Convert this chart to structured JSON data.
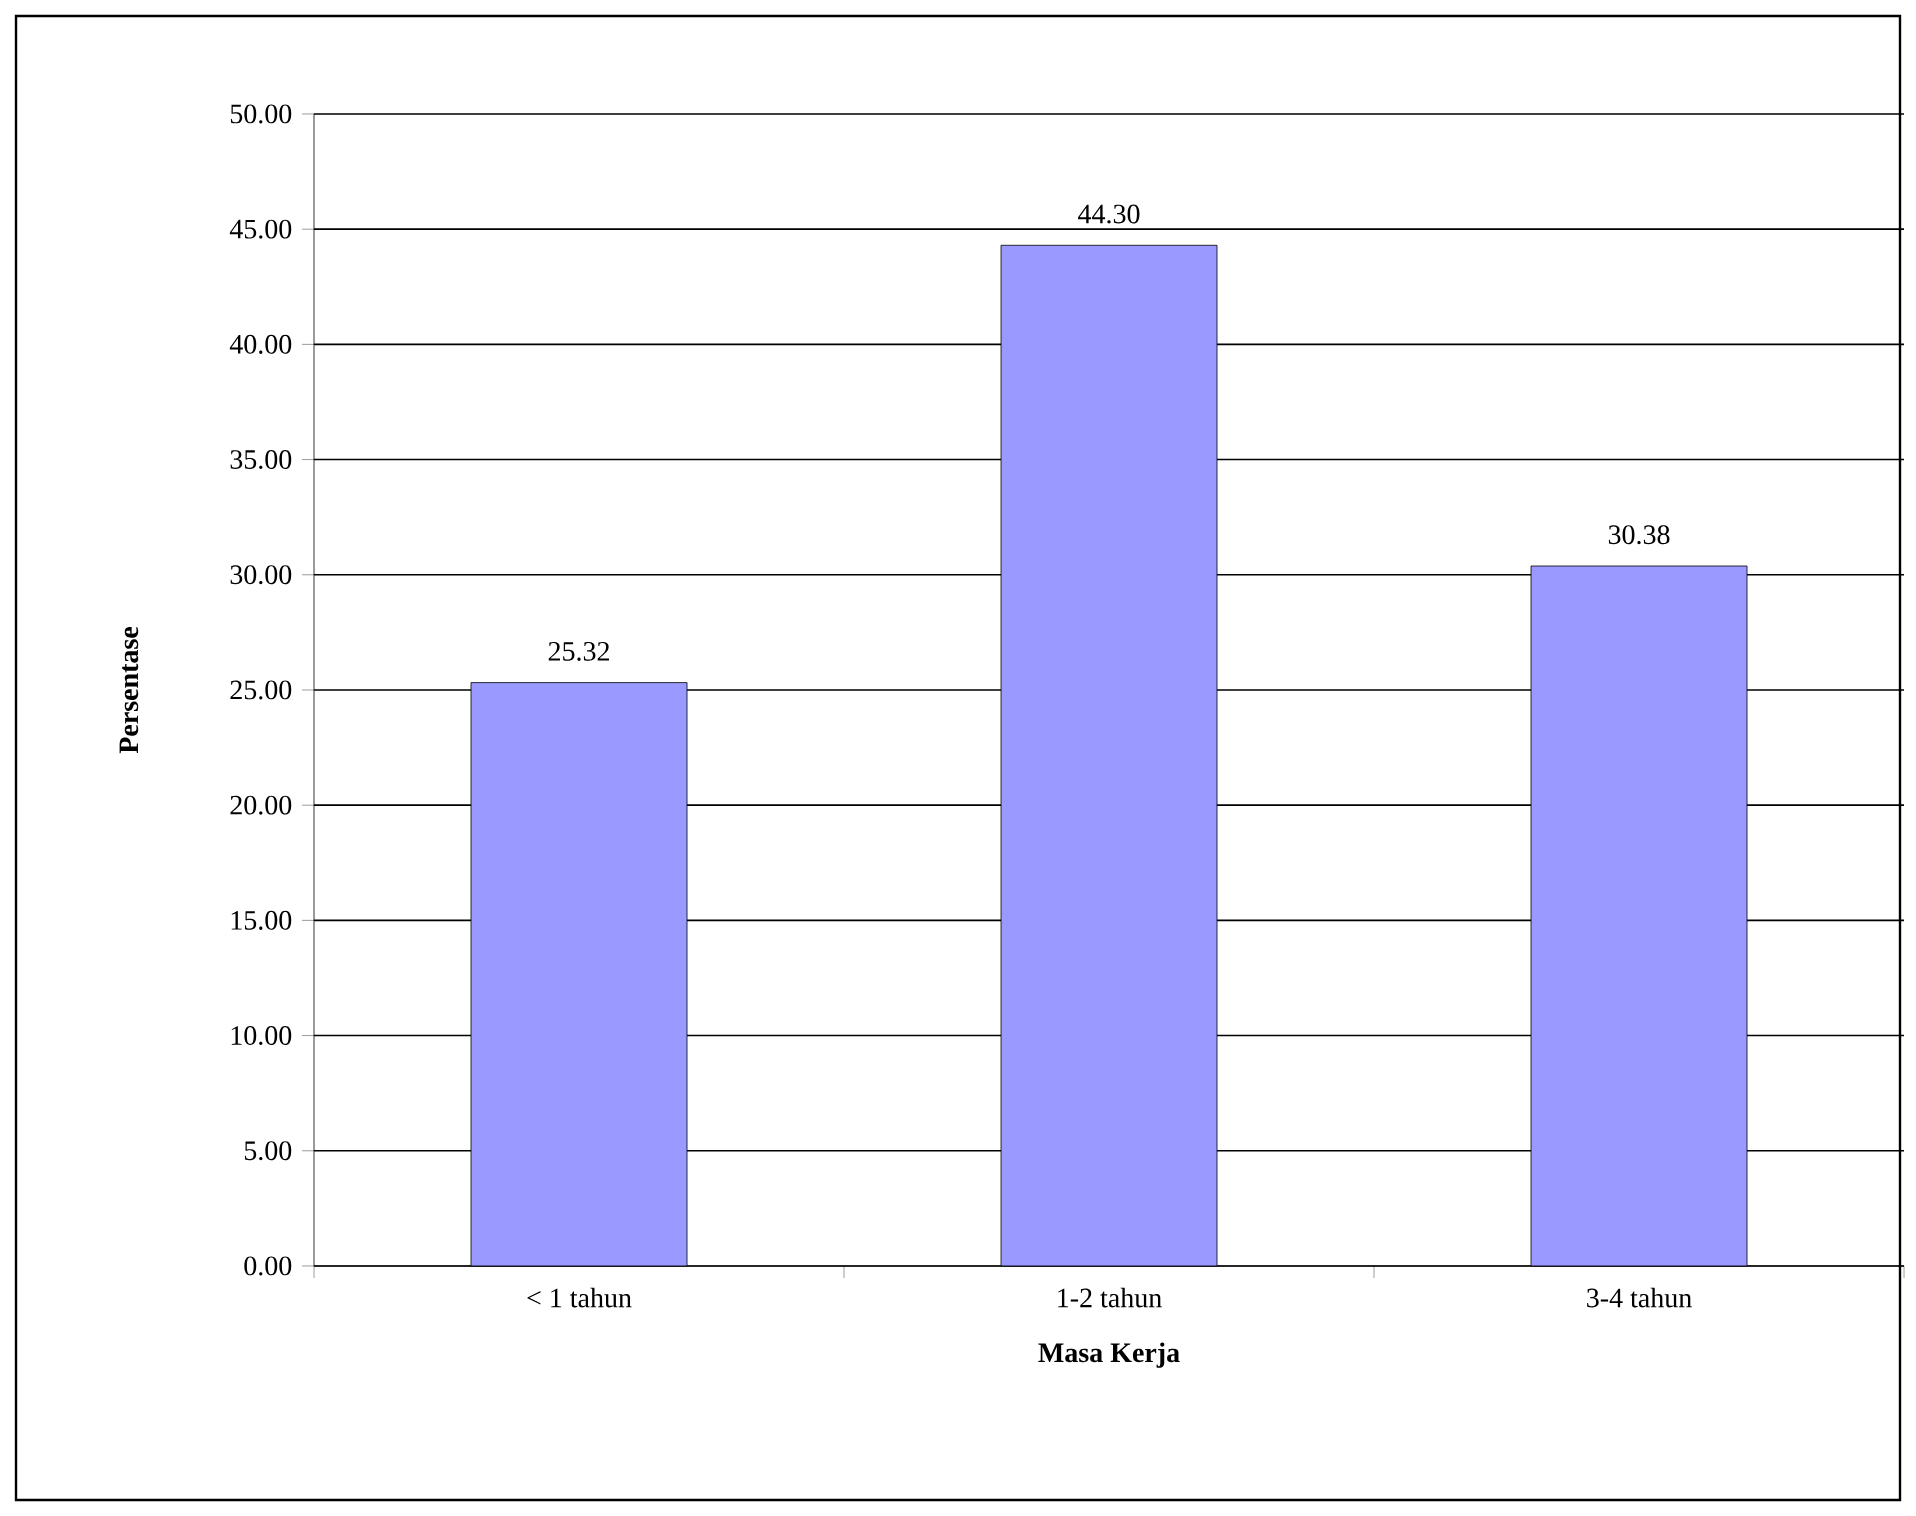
{
  "chart_data": {
    "type": "bar",
    "xlabel": "Masa Kerja",
    "ylabel": "Persentase",
    "categories": [
      "< 1 tahun",
      "1-2 tahun",
      "3-4 tahun"
    ],
    "values": [
      25.32,
      44.3,
      30.38
    ],
    "value_labels": [
      "25.32",
      "44.30",
      "30.38"
    ],
    "color": "#9999ff",
    "ylim": [
      0,
      50
    ],
    "yticks": [
      {
        "value": 0,
        "label": "0.00"
      },
      {
        "value": 5,
        "label": "5.00"
      },
      {
        "value": 10,
        "label": "10.00"
      },
      {
        "value": 15,
        "label": "15.00"
      },
      {
        "value": 20,
        "label": "20.00"
      },
      {
        "value": 25,
        "label": "25.00"
      },
      {
        "value": 30,
        "label": "30.00"
      },
      {
        "value": 35,
        "label": "35.00"
      },
      {
        "value": 40,
        "label": "40.00"
      },
      {
        "value": 45,
        "label": "45.00"
      },
      {
        "value": 50,
        "label": "50.00"
      }
    ],
    "grid": "y"
  }
}
